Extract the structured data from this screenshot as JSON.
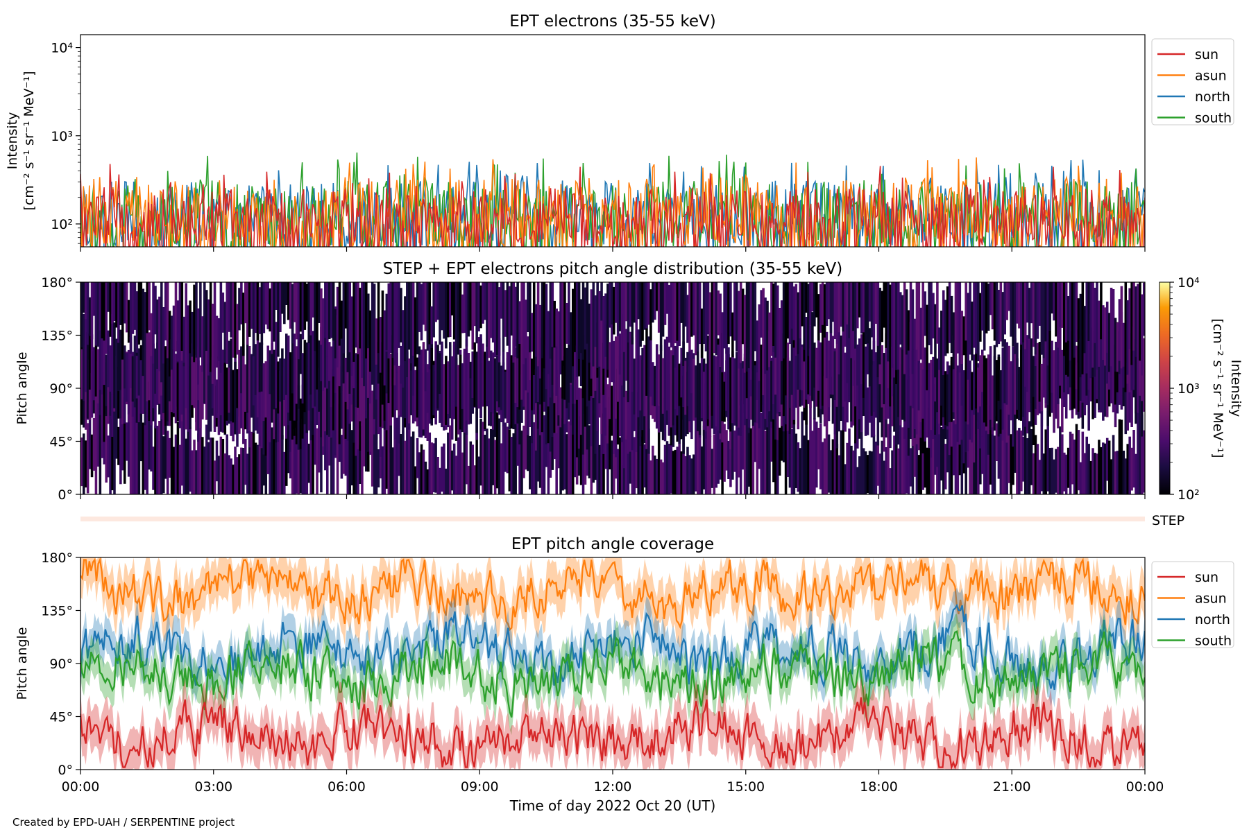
{
  "figure": {
    "credit": "Created by EPD-UAH / SERPENTINE project",
    "xlabel": "Time of day 2022 Oct 20 (UT)",
    "colors": {
      "sun": "#d62728",
      "asun": "#ff7f0e",
      "north": "#1f77b4",
      "south": "#2ca02c"
    }
  },
  "chart_data": [
    {
      "type": "line",
      "title": "EPT electrons (35-55 keV)",
      "ylabel": [
        "Intensity",
        "[cm⁻² s⁻¹ sr⁻¹ MeV⁻¹]"
      ],
      "yscale": "log",
      "ylim": [
        55,
        14000
      ],
      "yticks": [
        {
          "value": 100,
          "label": "10²"
        },
        {
          "value": 1000,
          "label": "10³"
        },
        {
          "value": 10000,
          "label": "10⁴"
        }
      ],
      "xlim_hours": [
        0,
        24
      ],
      "legend": {
        "placement": "outside-top-right",
        "entries": [
          "sun",
          "asun",
          "north",
          "south"
        ]
      },
      "series": [
        {
          "name": "sun",
          "color": "#d62728",
          "typical_range": [
            55,
            260
          ],
          "peak": 480
        },
        {
          "name": "asun",
          "color": "#ff7f0e",
          "typical_range": [
            55,
            330
          ],
          "peak": 580
        },
        {
          "name": "north",
          "color": "#1f77b4",
          "typical_range": [
            55,
            310
          ],
          "peak": 540
        },
        {
          "name": "south",
          "color": "#2ca02c",
          "typical_range": [
            55,
            320
          ],
          "peak": 650
        }
      ]
    },
    {
      "type": "heatmap",
      "title": "STEP + EPT electrons pitch angle distribution (35-55 keV)",
      "ylabel": "Pitch angle",
      "ylim": [
        0,
        180
      ],
      "yticks": [
        "0°",
        "45°",
        "90°",
        "135°",
        "180°"
      ],
      "xlim_hours": [
        0,
        24
      ],
      "colorbar": {
        "label": [
          "Intensity",
          "[cm⁻² s⁻¹ sr⁻¹ MeV⁻¹]"
        ],
        "scale": "log",
        "range": [
          100,
          10000
        ],
        "ticks": [
          "10²",
          "10³",
          "10⁴"
        ],
        "colormap": "inferno"
      }
    },
    {
      "type": "line",
      "title": "",
      "label": "STEP",
      "note": "empty STEP strip"
    },
    {
      "type": "line",
      "title": "EPT pitch angle coverage",
      "ylabel": "Pitch angle",
      "ylim": [
        0,
        180
      ],
      "yticks": [
        "0°",
        "45°",
        "90°",
        "135°",
        "180°"
      ],
      "xlim_hours": [
        0,
        24
      ],
      "xticks": [
        "00:00",
        "03:00",
        "06:00",
        "09:00",
        "12:00",
        "15:00",
        "18:00",
        "21:00",
        "00:00"
      ],
      "legend": {
        "placement": "outside-top-right",
        "entries": [
          "sun",
          "asun",
          "north",
          "south"
        ]
      },
      "series": [
        {
          "name": "sun",
          "color": "#d62728",
          "mean_deg": 28,
          "band_deg": 18
        },
        {
          "name": "asun",
          "color": "#ff7f0e",
          "mean_deg": 152,
          "band_deg": 18
        },
        {
          "name": "north",
          "color": "#1f77b4",
          "mean_deg": 100,
          "band_deg": 15
        },
        {
          "name": "south",
          "color": "#2ca02c",
          "mean_deg": 82,
          "band_deg": 15
        }
      ]
    }
  ]
}
